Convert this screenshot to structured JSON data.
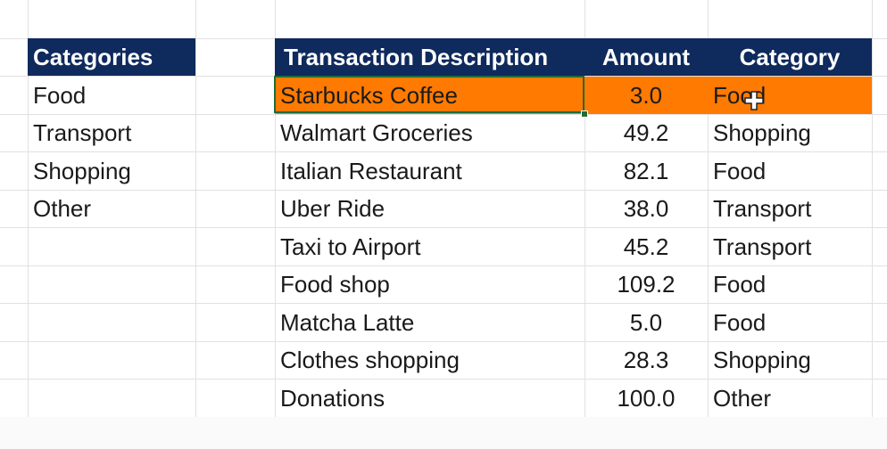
{
  "categories_table": {
    "header": "Categories",
    "items": [
      "Food",
      "Transport",
      "Shopping",
      "Other"
    ]
  },
  "transactions_table": {
    "headers": {
      "description": "Transaction Description",
      "amount": "Amount",
      "category": "Category"
    },
    "rows": [
      {
        "description": "Starbucks Coffee",
        "amount": "3.0",
        "category": "Food"
      },
      {
        "description": "Walmart Groceries",
        "amount": "49.2",
        "category": "Shopping"
      },
      {
        "description": "Italian Restaurant",
        "amount": "82.1",
        "category": "Food"
      },
      {
        "description": "Uber Ride",
        "amount": "38.0",
        "category": "Transport"
      },
      {
        "description": "Taxi to Airport",
        "amount": "45.2",
        "category": "Transport"
      },
      {
        "description": "Food shop",
        "amount": "109.2",
        "category": "Food"
      },
      {
        "description": "Matcha Latte",
        "amount": "5.0",
        "category": "Food"
      },
      {
        "description": "Clothes shopping",
        "amount": "28.3",
        "category": "Shopping"
      },
      {
        "description": "Donations",
        "amount": "100.0",
        "category": "Other"
      }
    ]
  },
  "colors": {
    "header_bg": "#0f2a5c",
    "highlight_row": "#ff7a00",
    "selection_border": "#1f6b3a"
  },
  "selected_row": 0,
  "icons": {
    "cursor": "move-cursor-icon"
  }
}
